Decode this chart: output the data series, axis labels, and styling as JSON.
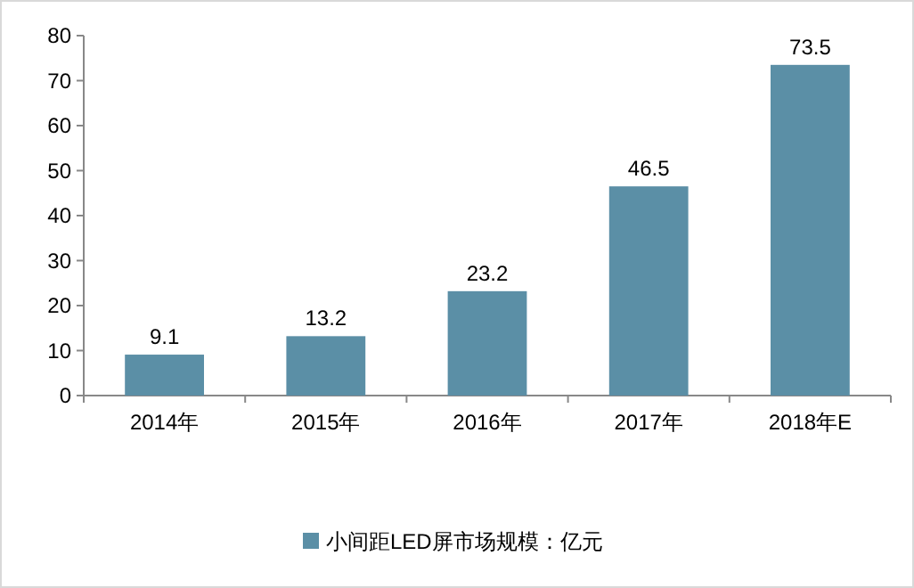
{
  "chart_data": {
    "type": "bar",
    "categories": [
      "2014年",
      "2015年",
      "2016年",
      "2017年",
      "2018年E"
    ],
    "series": [
      {
        "name": "小间距LED屏市场规模：亿元",
        "color": "#5b8fa6",
        "values": [
          9.1,
          13.2,
          23.2,
          46.5,
          73.5
        ]
      }
    ],
    "ylim": [
      0,
      80
    ],
    "yticks": [
      0,
      10,
      20,
      30,
      40,
      50,
      60,
      70,
      80
    ],
    "data_labels": true,
    "legend": "bottom",
    "grid": false
  }
}
